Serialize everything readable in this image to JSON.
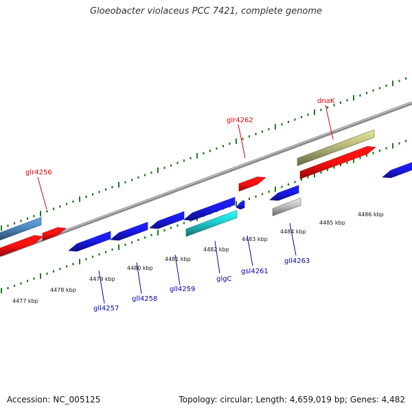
{
  "title": "Gloeobacter violaceus PCC 7421, complete genome",
  "footer": {
    "accession": "Accession: NC_005125",
    "summary": "Topology: circular; Length: 4,659,019 bp; Genes: 4,482"
  },
  "colors": {
    "forward_label": "#dd0000",
    "reverse_label": "#0000aa",
    "backbone": "#8a8a8a",
    "tick": "#1a7a1a"
  },
  "ruler": {
    "labels": [
      "4477 kbp",
      "4478 kbp",
      "4479 kbp",
      "4480 kbp",
      "4481 kbp",
      "4482 kbp",
      "4483 kbp",
      "4484 kbp",
      "4485 kbp",
      "4486 kbp"
    ]
  },
  "genes": [
    {
      "label": "glr4256",
      "strand": "forward",
      "color": "#ff1010"
    },
    {
      "label": "glr4262",
      "strand": "forward",
      "color": "#ff1010"
    },
    {
      "label": "dnaK",
      "strand": "forward",
      "color": "#b8b87a"
    },
    {
      "label": "gll4257",
      "strand": "reverse",
      "color": "#1a1aee"
    },
    {
      "label": "gll4258",
      "strand": "reverse",
      "color": "#1a1aee"
    },
    {
      "label": "gll4259",
      "strand": "reverse",
      "color": "#1a1aee"
    },
    {
      "label": "glgC",
      "strand": "reverse",
      "color": "#22cccc"
    },
    {
      "label": "gsl4261",
      "strand": "reverse",
      "color": "#1a1aee"
    },
    {
      "label": "gll4263",
      "strand": "reverse",
      "color": "#1a1aee"
    }
  ]
}
